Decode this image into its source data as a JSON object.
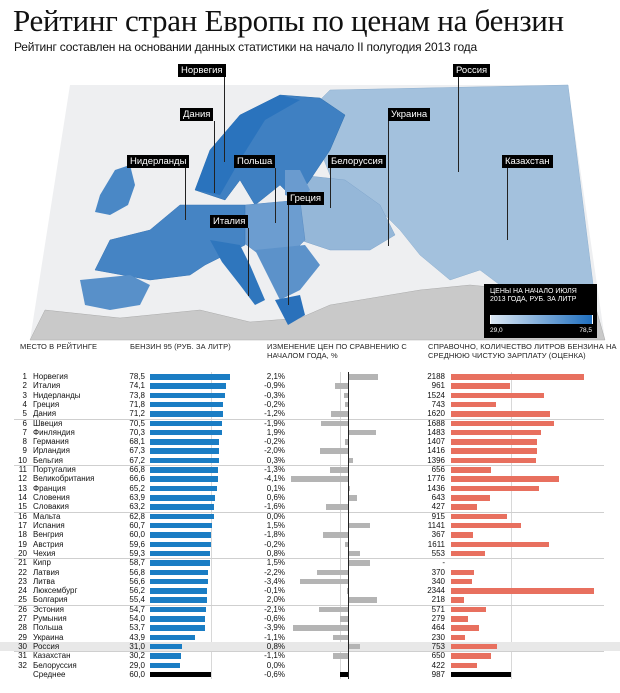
{
  "title": "Рейтинг стран Европы по ценам на бензин",
  "subtitle": "Рейтинг составлен на основании данных статистики на начало II полугодия 2013 года",
  "map": {
    "labels": [
      "Норвегия",
      "Россия",
      "Дания",
      "Украина",
      "Нидерланды",
      "Польша",
      "Белоруссия",
      "Казахстан",
      "Греция",
      "Италия"
    ],
    "legend": {
      "title": "ЦЕНЫ НА НАЧАЛО ИЮЛЯ 2013 ГОДА, РУБ. ЗА ЛИТР",
      "min": "29,0",
      "max": "78,5",
      "min_color": "#dbe7f3",
      "max_color": "#1f6fbf"
    }
  },
  "chart_data": {
    "type": "table",
    "columns": {
      "place": "МЕСТО В РЕЙТИНГЕ",
      "price": "БЕНЗИН 95 (РУБ. ЗА ЛИТР)",
      "change": "ИЗМЕНЕНИЕ ЦЕН ПО СРАВНЕНИЮ С НАЧАЛОМ ГОДА, %",
      "liters": "СПРАВОЧНО, КОЛИЧЕСТВО ЛИТРОВ БЕНЗИНА НА СРЕДНЮЮ ЧИСТУЮ ЗАРПЛАТУ (ОЦЕНКА)"
    },
    "colors": {
      "price": "#1a7dc4",
      "change": "#b4b4b4",
      "liters": "#e8705f",
      "average": "#000000",
      "highlight": "#e8e8e8"
    },
    "highlight": "Россия",
    "rows": [
      {
        "rank": "1",
        "country": "Норвегия",
        "price": 78.5,
        "price_label": "78,5",
        "change": 2.1,
        "change_label": "2,1%",
        "liters": 2188,
        "liters_label": "2188"
      },
      {
        "rank": "2",
        "country": "Италия",
        "price": 74.1,
        "price_label": "74,1",
        "change": -0.9,
        "change_label": "-0,9%",
        "liters": 961,
        "liters_label": "961"
      },
      {
        "rank": "3",
        "country": "Нидерланды",
        "price": 73.8,
        "price_label": "73,8",
        "change": -0.3,
        "change_label": "-0,3%",
        "liters": 1524,
        "liters_label": "1524"
      },
      {
        "rank": "4",
        "country": "Греция",
        "price": 71.8,
        "price_label": "71,8",
        "change": -0.2,
        "change_label": "-0,2%",
        "liters": 743,
        "liters_label": "743"
      },
      {
        "rank": "5",
        "country": "Дания",
        "price": 71.2,
        "price_label": "71,2",
        "change": -1.2,
        "change_label": "-1,2%",
        "liters": 1620,
        "liters_label": "1620"
      },
      {
        "rank": "6",
        "country": "Швеция",
        "price": 70.5,
        "price_label": "70,5",
        "change": -1.9,
        "change_label": "-1,9%",
        "liters": 1688,
        "liters_label": "1688"
      },
      {
        "rank": "7",
        "country": "Финляндия",
        "price": 70.3,
        "price_label": "70,3",
        "change": 1.9,
        "change_label": "1,9%",
        "liters": 1483,
        "liters_label": "1483"
      },
      {
        "rank": "8",
        "country": "Германия",
        "price": 68.1,
        "price_label": "68,1",
        "change": -0.2,
        "change_label": "-0,2%",
        "liters": 1407,
        "liters_label": "1407"
      },
      {
        "rank": "9",
        "country": "Ирландия",
        "price": 67.3,
        "price_label": "67,3",
        "change": -2.0,
        "change_label": "-2,0%",
        "liters": 1416,
        "liters_label": "1416"
      },
      {
        "rank": "10",
        "country": "Бельгия",
        "price": 67.2,
        "price_label": "67,2",
        "change": 0.3,
        "change_label": "0,3%",
        "liters": 1396,
        "liters_label": "1396"
      },
      {
        "rank": "11",
        "country": "Португалия",
        "price": 66.8,
        "price_label": "66,8",
        "change": -1.3,
        "change_label": "-1,3%",
        "liters": 656,
        "liters_label": "656"
      },
      {
        "rank": "12",
        "country": "Великобритания",
        "price": 66.6,
        "price_label": "66,6",
        "change": -4.1,
        "change_label": "-4,1%",
        "liters": 1776,
        "liters_label": "1776"
      },
      {
        "rank": "13",
        "country": "Франция",
        "price": 65.2,
        "price_label": "65,2",
        "change": 0.1,
        "change_label": "0,1%",
        "liters": 1436,
        "liters_label": "1436"
      },
      {
        "rank": "14",
        "country": "Словения",
        "price": 63.9,
        "price_label": "63,9",
        "change": 0.6,
        "change_label": "0,6%",
        "liters": 643,
        "liters_label": "643"
      },
      {
        "rank": "15",
        "country": "Словакия",
        "price": 63.2,
        "price_label": "63,2",
        "change": -1.6,
        "change_label": "-1,6%",
        "liters": 427,
        "liters_label": "427"
      },
      {
        "rank": "16",
        "country": "Мальта",
        "price": 62.8,
        "price_label": "62,8",
        "change": 0.0,
        "change_label": "0,0%",
        "liters": 915,
        "liters_label": "915"
      },
      {
        "rank": "17",
        "country": "Испания",
        "price": 60.7,
        "price_label": "60,7",
        "change": 1.5,
        "change_label": "1,5%",
        "liters": 1141,
        "liters_label": "1141"
      },
      {
        "rank": "18",
        "country": "Венгрия",
        "price": 60.0,
        "price_label": "60,0",
        "change": -1.8,
        "change_label": "-1,8%",
        "liters": 367,
        "liters_label": "367"
      },
      {
        "rank": "19",
        "country": "Австрия",
        "price": 59.6,
        "price_label": "59,6",
        "change": -0.2,
        "change_label": "-0,2%",
        "liters": 1611,
        "liters_label": "1611"
      },
      {
        "rank": "20",
        "country": "Чехия",
        "price": 59.3,
        "price_label": "59,3",
        "change": 0.8,
        "change_label": "0,8%",
        "liters": 553,
        "liters_label": "553"
      },
      {
        "rank": "21",
        "country": "Кипр",
        "price": 58.7,
        "price_label": "58,7",
        "change": 1.5,
        "change_label": "1,5%",
        "liters": null,
        "liters_label": "-"
      },
      {
        "rank": "22",
        "country": "Латвия",
        "price": 56.8,
        "price_label": "56,8",
        "change": -2.2,
        "change_label": "-2,2%",
        "liters": 370,
        "liters_label": "370"
      },
      {
        "rank": "23",
        "country": "Литва",
        "price": 56.6,
        "price_label": "56,6",
        "change": -3.4,
        "change_label": "-3,4%",
        "liters": 340,
        "liters_label": "340"
      },
      {
        "rank": "24",
        "country": "Люксембург",
        "price": 56.2,
        "price_label": "56,2",
        "change": -0.1,
        "change_label": "-0,1%",
        "liters": 2344,
        "liters_label": "2344"
      },
      {
        "rank": "25",
        "country": "Болгария",
        "price": 55.4,
        "price_label": "55,4",
        "change": 2.0,
        "change_label": "2,0%",
        "liters": 218,
        "liters_label": "218"
      },
      {
        "rank": "26",
        "country": "Эстония",
        "price": 54.7,
        "price_label": "54,7",
        "change": -2.1,
        "change_label": "-2,1%",
        "liters": 571,
        "liters_label": "571"
      },
      {
        "rank": "27",
        "country": "Румыния",
        "price": 54.0,
        "price_label": "54,0",
        "change": -0.6,
        "change_label": "-0,6%",
        "liters": 279,
        "liters_label": "279"
      },
      {
        "rank": "28",
        "country": "Польша",
        "price": 53.7,
        "price_label": "53,7",
        "change": -3.9,
        "change_label": "-3,9%",
        "liters": 464,
        "liters_label": "464"
      },
      {
        "rank": "29",
        "country": "Украина",
        "price": 43.9,
        "price_label": "43,9",
        "change": -1.1,
        "change_label": "-1,1%",
        "liters": 230,
        "liters_label": "230"
      },
      {
        "rank": "30",
        "country": "Россия",
        "price": 31.0,
        "price_label": "31,0",
        "change": 0.8,
        "change_label": "0,8%",
        "liters": 753,
        "liters_label": "753"
      },
      {
        "rank": "31",
        "country": "Казахстан",
        "price": 30.2,
        "price_label": "30,2",
        "change": -1.1,
        "change_label": "-1,1%",
        "liters": 650,
        "liters_label": "650"
      },
      {
        "rank": "32",
        "country": "Белоруссия",
        "price": 29.0,
        "price_label": "29,0",
        "change": 0.0,
        "change_label": "0,0%",
        "liters": 422,
        "liters_label": "422"
      },
      {
        "rank": "",
        "country": "Среднее",
        "price": 60.0,
        "price_label": "60,0",
        "change": -0.6,
        "change_label": "-0,6%",
        "liters": 987,
        "liters_label": "987",
        "average": true
      }
    ]
  }
}
